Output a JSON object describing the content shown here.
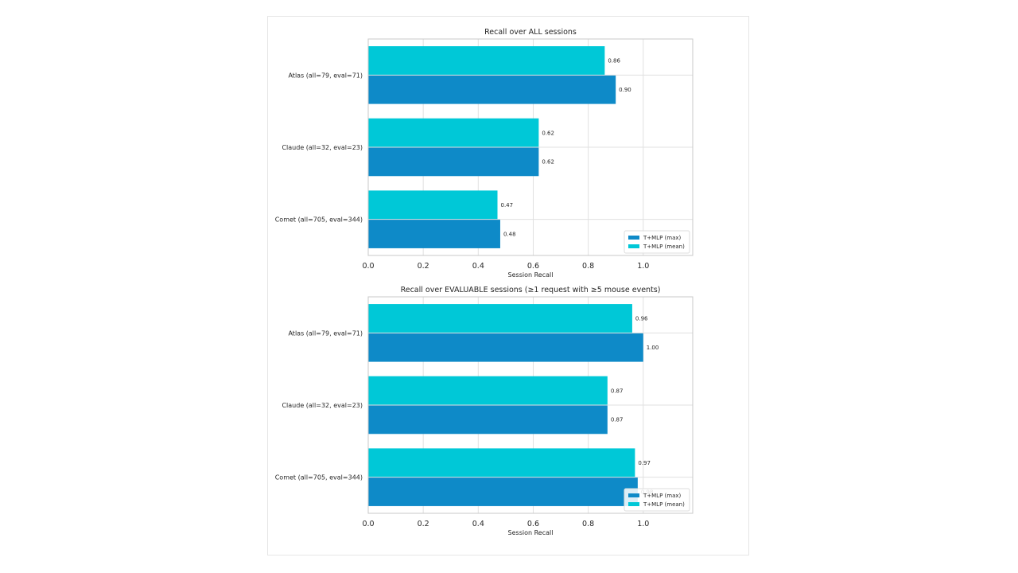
{
  "colors": {
    "max": "#0e8ac8",
    "mean": "#00c8d7",
    "grid": "#e0e0e0",
    "frame": "#c8c8c8"
  },
  "chart_data": [
    {
      "type": "bar",
      "orientation": "horizontal",
      "title": "Recall over ALL sessions",
      "xlabel": "Session Recall",
      "categories": [
        "Atlas  (all=79, eval=71)",
        "Claude  (all=32, eval=23)",
        "Comet  (all=705, eval=344)"
      ],
      "series": [
        {
          "name": "T+MLP (mean)",
          "values": [
            0.86,
            0.62,
            0.47
          ],
          "labels": [
            "0.86",
            "0.62",
            "0.47"
          ]
        },
        {
          "name": "T+MLP (max)",
          "values": [
            0.9,
            0.62,
            0.48
          ],
          "labels": [
            "0.90",
            "0.62",
            "0.48"
          ]
        }
      ],
      "xlim": [
        0,
        1.18
      ],
      "xticks": [
        "0.0",
        "0.2",
        "0.4",
        "0.6",
        "0.8",
        "1.0"
      ],
      "xtick_values": [
        0,
        0.2,
        0.4,
        0.6,
        0.8,
        1.0
      ],
      "grid": true,
      "legend": {
        "placement": "lower-right",
        "entries": [
          "T+MLP (max)",
          "T+MLP (mean)"
        ]
      }
    },
    {
      "type": "bar",
      "orientation": "horizontal",
      "title": "Recall over EVALUABLE sessions (≥1 request with ≥5 mouse events)",
      "xlabel": "Session Recall",
      "categories": [
        "Atlas  (all=79, eval=71)",
        "Claude  (all=32, eval=23)",
        "Comet  (all=705, eval=344)"
      ],
      "series": [
        {
          "name": "T+MLP (mean)",
          "values": [
            0.96,
            0.87,
            0.97
          ],
          "labels": [
            "0.96",
            "0.87",
            "0.97"
          ]
        },
        {
          "name": "T+MLP (max)",
          "values": [
            1.0,
            0.87,
            0.98
          ],
          "labels": [
            "1.00",
            "0.87",
            "0.98"
          ]
        }
      ],
      "xlim": [
        0,
        1.18
      ],
      "xticks": [
        "0.0",
        "0.2",
        "0.4",
        "0.6",
        "0.8",
        "1.0"
      ],
      "xtick_values": [
        0,
        0.2,
        0.4,
        0.6,
        0.8,
        1.0
      ],
      "grid": true,
      "legend": {
        "placement": "lower-right",
        "entries": [
          "T+MLP (max)",
          "T+MLP (mean)"
        ]
      }
    }
  ]
}
